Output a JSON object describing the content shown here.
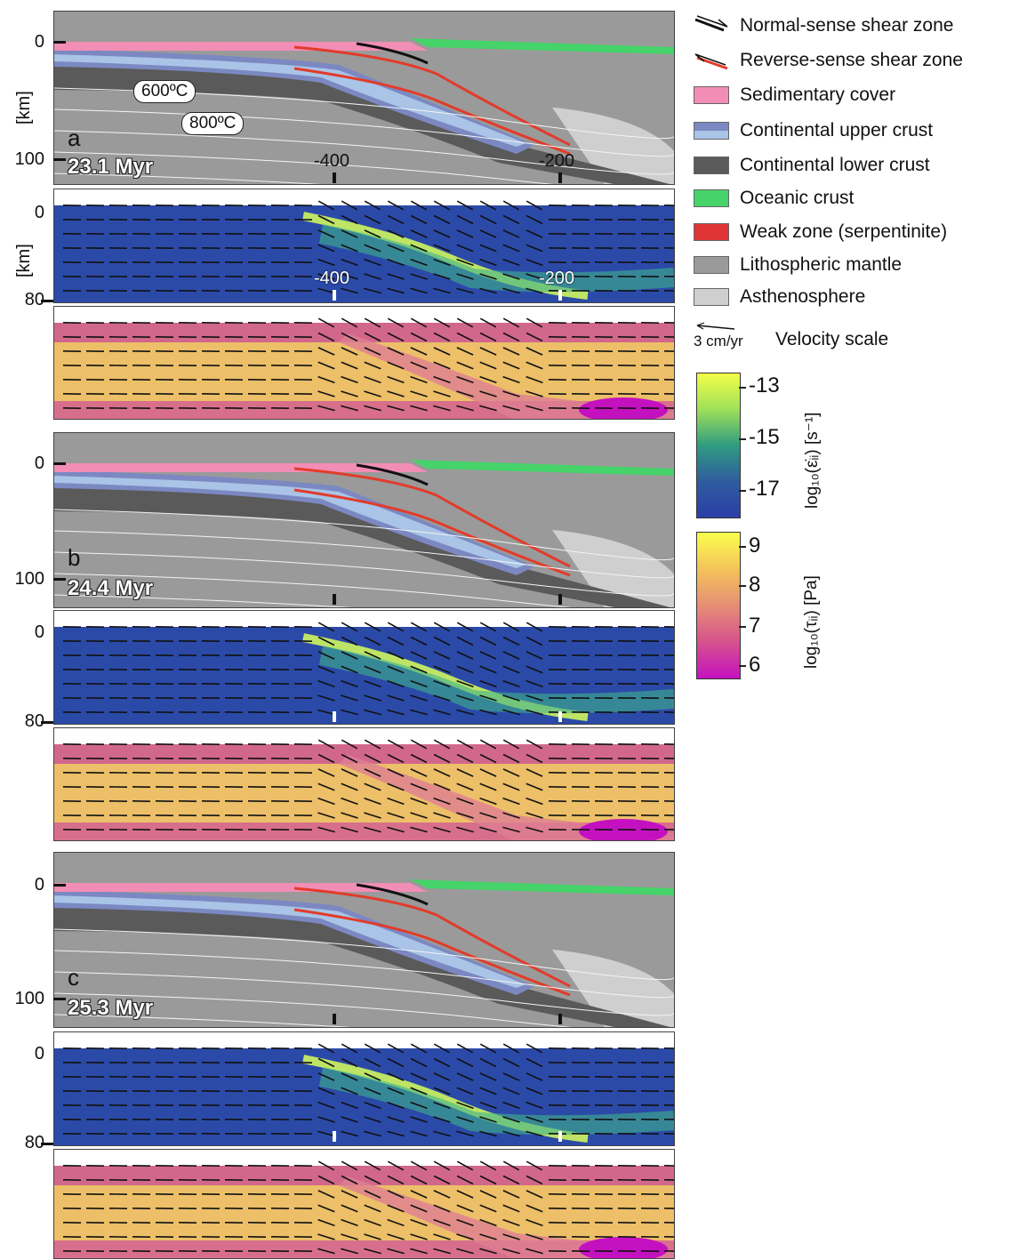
{
  "legend": {
    "items": [
      {
        "label": "Normal-sense shear zone",
        "kind": "normal",
        "color": "#111111"
      },
      {
        "label": "Reverse-sense shear zone",
        "kind": "reverse",
        "color": "#e23b2a"
      },
      {
        "label": "Sedimentary cover",
        "kind": "swatch",
        "color": "#f28db5"
      },
      {
        "label": "Continental upper crust",
        "kind": "swatch2",
        "color": "#7b88c2",
        "color2": "#a9c4e6"
      },
      {
        "label": "Continental lower crust",
        "kind": "swatch",
        "color": "#5a5a5a"
      },
      {
        "label": "Oceanic crust",
        "kind": "swatch",
        "color": "#45d36a"
      },
      {
        "label": "Weak zone (serpentinite)",
        "kind": "swatch",
        "color": "#e03535"
      },
      {
        "label": "Lithospheric mantle",
        "kind": "swatch",
        "color": "#9a9a9a"
      },
      {
        "label": "Asthenosphere",
        "kind": "swatch",
        "color": "#cfcfcf"
      }
    ],
    "velocity_value": "3 cm/yr",
    "velocity_label": "Velocity scale"
  },
  "colorbars": {
    "strain": {
      "ticks": [
        "-13",
        "-15",
        "-17"
      ],
      "title": "log₁₀(ε̇ᵢᵢ) [s⁻¹]"
    },
    "stress": {
      "ticks": [
        "9",
        "8",
        "7",
        "6"
      ],
      "title": "log₁₀(τᵢᵢ) [Pa]"
    }
  },
  "axes": {
    "depth_unit": "[km]",
    "comp_ticks": [
      "0",
      "100"
    ],
    "strain_ticks": [
      "0",
      "80"
    ],
    "x_ticks": [
      "-400",
      "-200"
    ]
  },
  "isotherms": [
    "600ºC",
    "800ºC"
  ],
  "panels": [
    {
      "letter": "a",
      "time": "23.1 Myr"
    },
    {
      "letter": "b",
      "time": "24.4 Myr"
    },
    {
      "letter": "c",
      "time": "25.3 Myr"
    }
  ]
}
